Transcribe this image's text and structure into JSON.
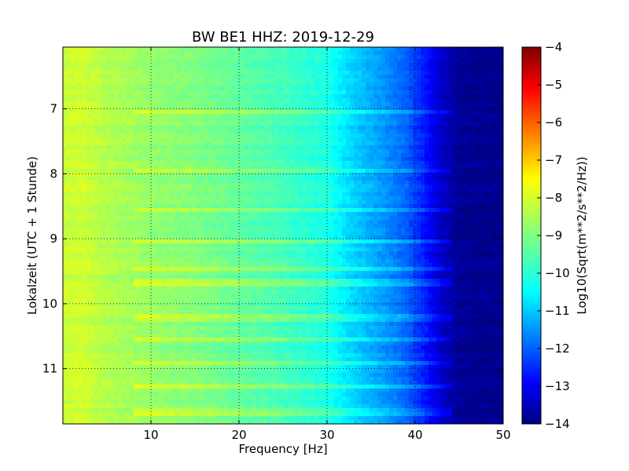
{
  "chart_data": {
    "type": "heatmap",
    "title": "BW BE1 HHZ: 2019-12-29",
    "xlabel": "Frequency [Hz]",
    "ylabel": "Lokalzeit (UTC + 1 Stunde)",
    "xlim": [
      0,
      50
    ],
    "ylim_time_hours": [
      6.05,
      11.85
    ],
    "y_axis_inverted": true,
    "grid": true,
    "x_ticks": [
      10,
      20,
      30,
      40,
      50
    ],
    "y_ticks": [
      7,
      8,
      9,
      10,
      11
    ],
    "colormap": "jet",
    "colorbar": {
      "label": "Log10(Sqrt(m**2/s**2/Hz))",
      "min": -14,
      "max": -4,
      "ticks": [
        -4,
        -5,
        -6,
        -7,
        -8,
        -9,
        -10,
        -11,
        -12,
        -13,
        -14
      ]
    },
    "frequency_profile": [
      {
        "f": 0,
        "value": -8.3
      },
      {
        "f": 2,
        "value": -8.2
      },
      {
        "f": 5,
        "value": -8.5
      },
      {
        "f": 10,
        "value": -8.8
      },
      {
        "f": 15,
        "value": -9.0
      },
      {
        "f": 20,
        "value": -9.3
      },
      {
        "f": 25,
        "value": -9.6
      },
      {
        "f": 30,
        "value": -10.0
      },
      {
        "f": 33,
        "value": -10.7
      },
      {
        "f": 36,
        "value": -11.2
      },
      {
        "f": 39,
        "value": -11.8
      },
      {
        "f": 41,
        "value": -12.5
      },
      {
        "f": 43,
        "value": -13.3
      },
      {
        "f": 45,
        "value": -13.8
      },
      {
        "f": 50,
        "value": -13.9
      }
    ],
    "transient_events_hours": [
      7.05,
      7.95,
      8.55,
      9.05,
      9.45,
      9.67,
      10.22,
      10.55,
      10.93,
      11.3,
      11.62,
      11.72
    ]
  }
}
